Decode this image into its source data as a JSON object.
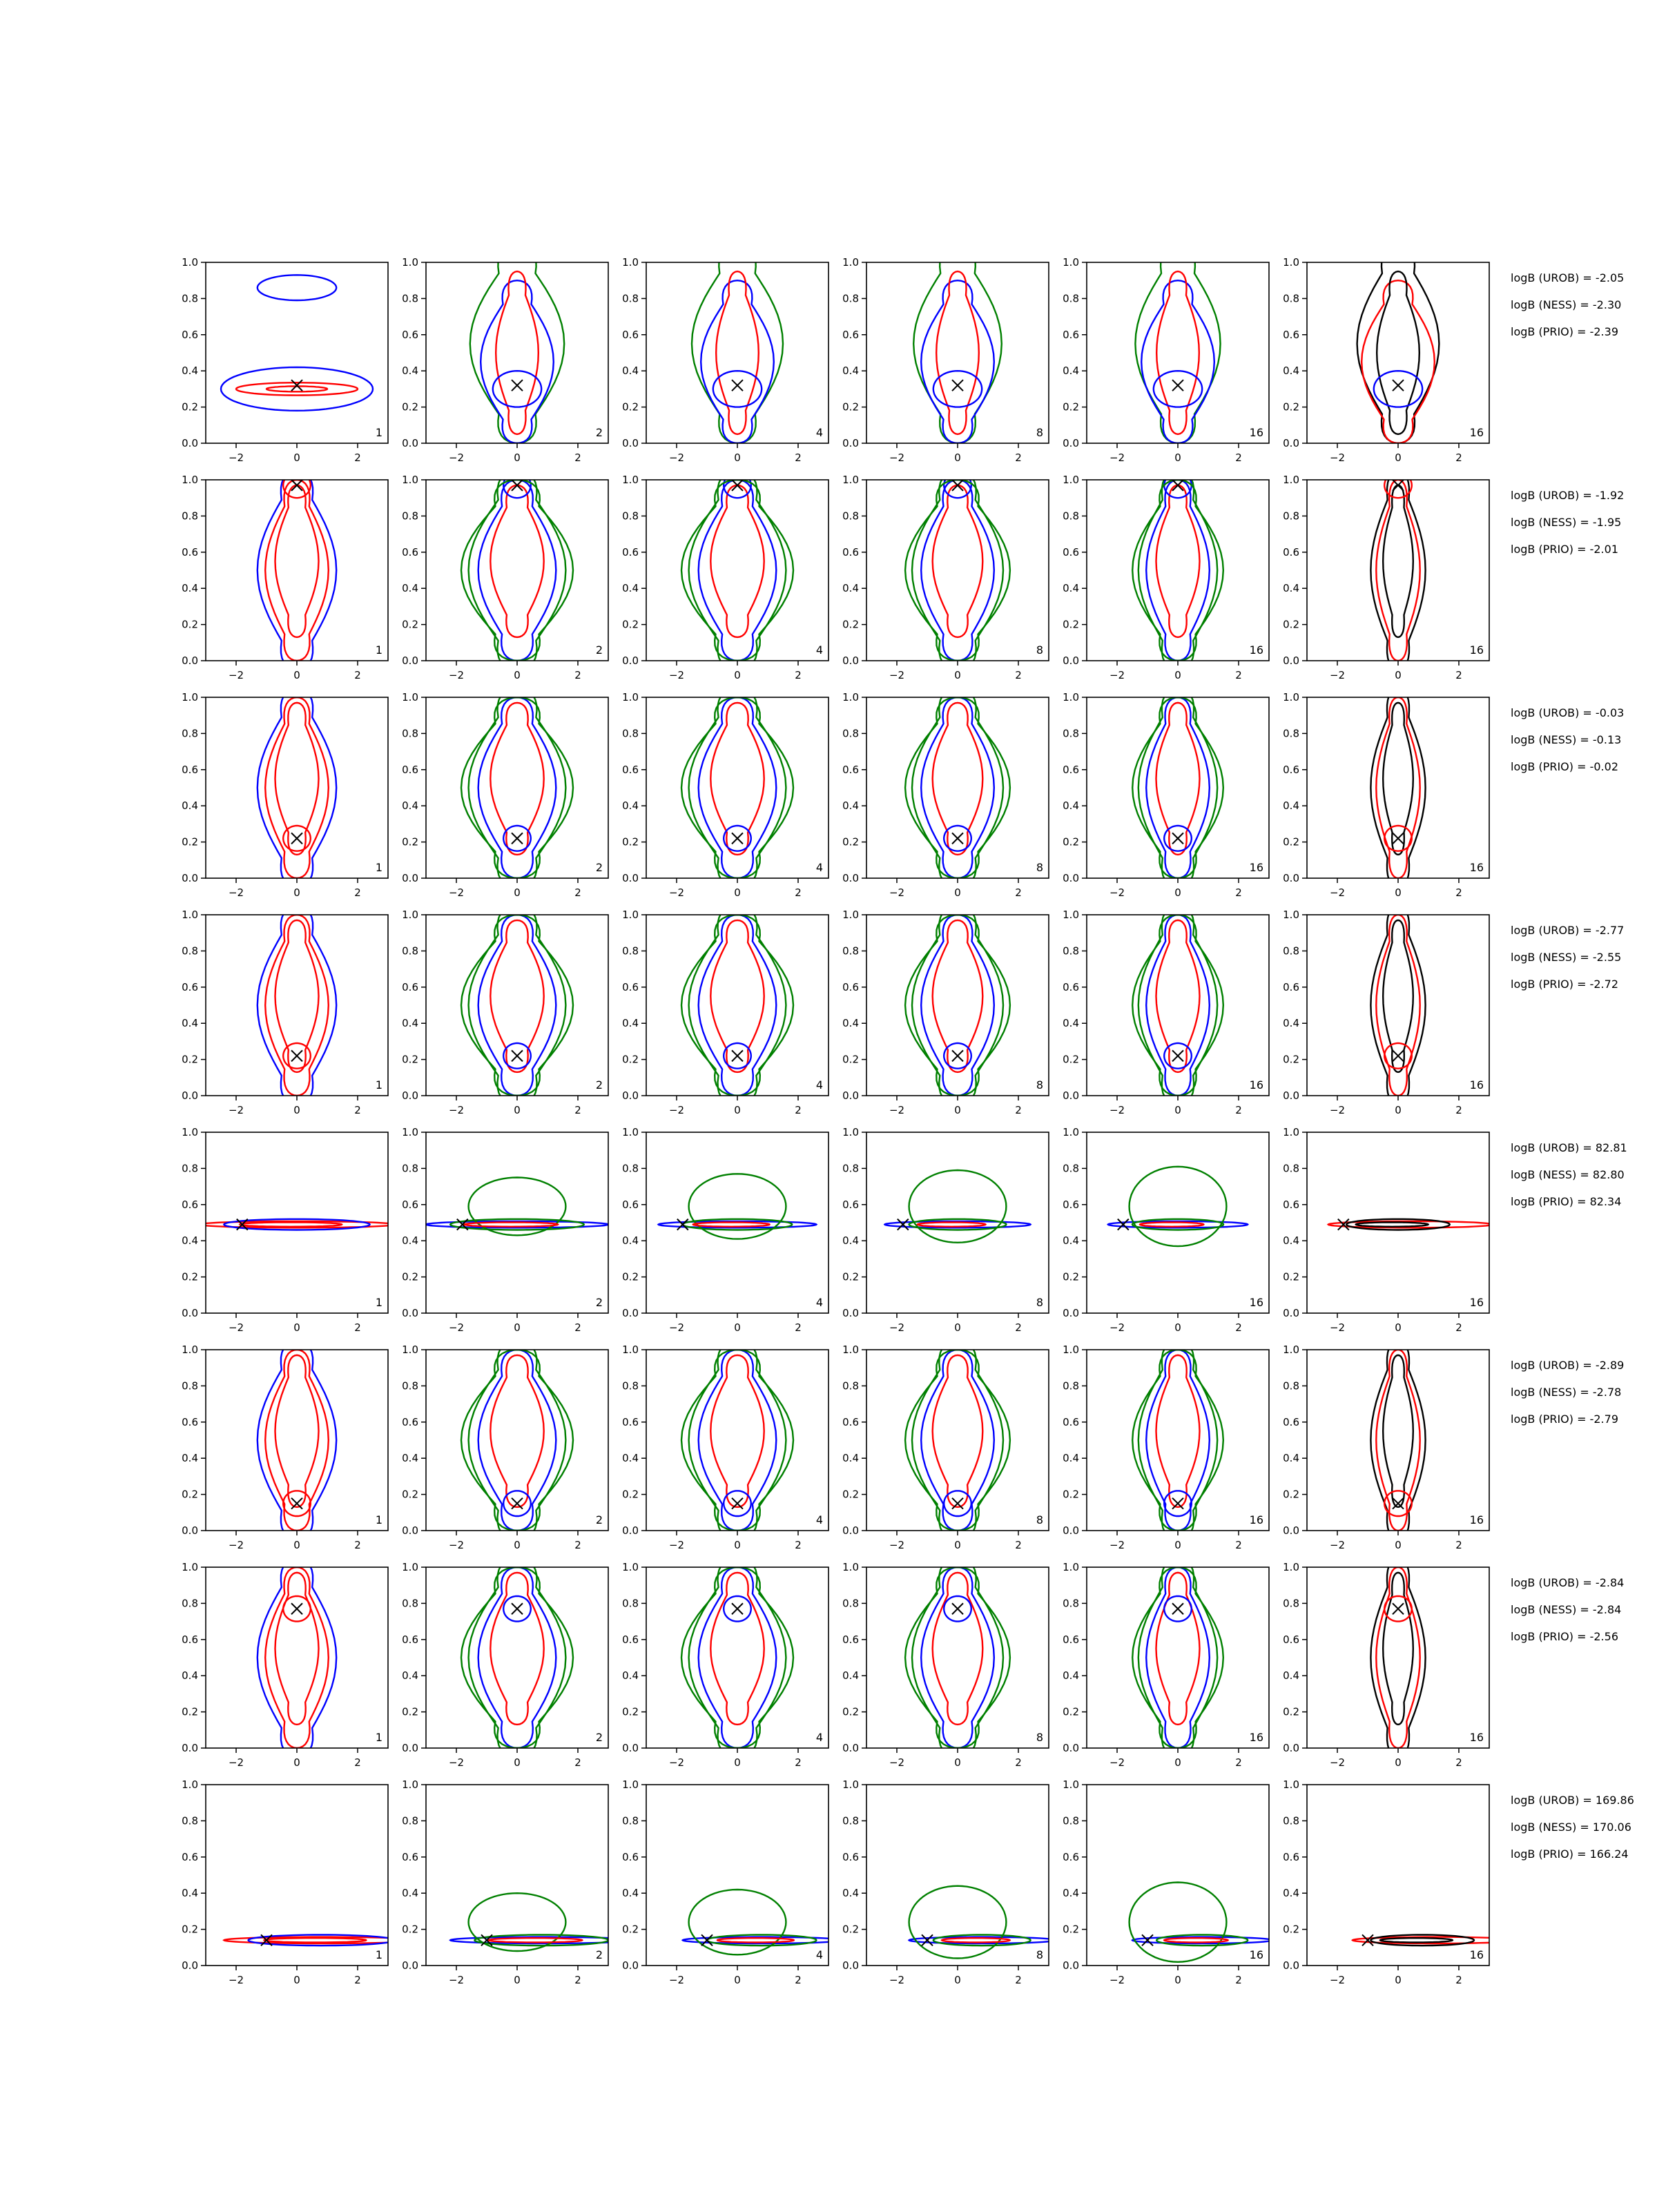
{
  "chart_data": {
    "type": "contour",
    "layout": "8 rows x 6 columns of contour panels",
    "xlim": [
      -3,
      3
    ],
    "ylim": [
      0,
      1
    ],
    "xticks": [
      -2,
      0,
      2
    ],
    "yticks": [
      0.0,
      0.2,
      0.4,
      0.6,
      0.8,
      1.0
    ],
    "series_colors": {
      "blue": "#0000ff",
      "red": "#ff0000",
      "green": "#008000",
      "black": "#000000"
    },
    "column_labels": [
      "1",
      "2",
      "4",
      "8",
      "16",
      "16"
    ],
    "rows": [
      {
        "marker": [
          0,
          0.32
        ],
        "mode": "wide",
        "logB": [
          "logB (UROB) = -2.05",
          "logB (NESS) = -2.30",
          "logB (PRIO) = -2.39"
        ]
      },
      {
        "marker": [
          0,
          0.97
        ],
        "mode": "vertical",
        "logB": [
          "logB (UROB) = -1.92",
          "logB (NESS) = -1.95",
          "logB (PRIO) = -2.01"
        ]
      },
      {
        "marker": [
          0,
          0.22
        ],
        "mode": "vertical",
        "logB": [
          "logB (UROB) = -0.03",
          "logB (NESS) = -0.13",
          "logB (PRIO) = -0.02"
        ]
      },
      {
        "marker": [
          0,
          0.22
        ],
        "mode": "vertical",
        "logB": [
          "logB (UROB) = -2.77",
          "logB (NESS) = -2.55",
          "logB (PRIO) = -2.72"
        ]
      },
      {
        "marker": [
          -1.8,
          0.49
        ],
        "mode": "flat",
        "logB": [
          "logB (UROB) = 82.81",
          "logB (NESS) = 82.80",
          "logB (PRIO) = 82.34"
        ]
      },
      {
        "marker": [
          0,
          0.15
        ],
        "mode": "vertical",
        "logB": [
          "logB (UROB) = -2.89",
          "logB (NESS) = -2.78",
          "logB (PRIO) = -2.79"
        ]
      },
      {
        "marker": [
          0,
          0.77
        ],
        "mode": "vertical",
        "logB": [
          "logB (UROB) = -2.84",
          "logB (NESS) = -2.84",
          "logB (PRIO) = -2.56"
        ]
      },
      {
        "marker": [
          -1,
          0.14
        ],
        "mode": "flat",
        "logB": [
          "logB (UROB) = 169.86",
          "logB (NESS) = 170.06",
          "logB (PRIO) = 166.24"
        ]
      }
    ]
  }
}
